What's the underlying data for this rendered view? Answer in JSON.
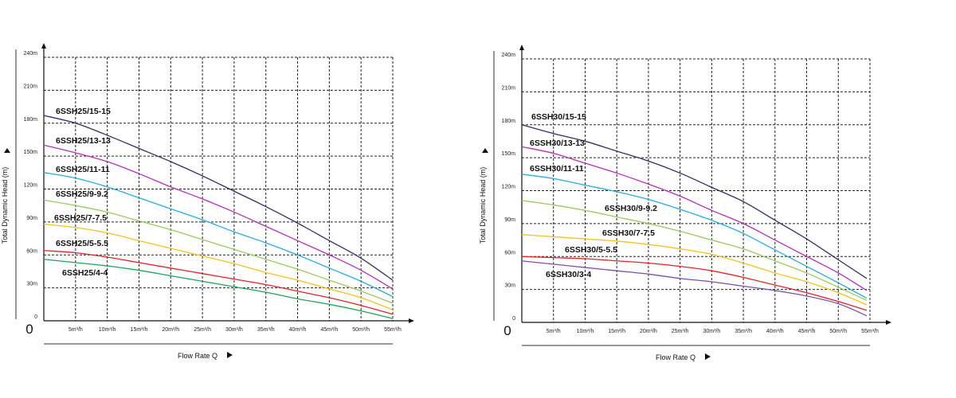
{
  "chart_data": [
    {
      "type": "line",
      "title": "",
      "xlabel": "Flow Rate Q",
      "ylabel": "Total Dynamic Head (m)",
      "origin_label": "0",
      "x": [
        0,
        5,
        10,
        15,
        20,
        25,
        30,
        35,
        40,
        45,
        50,
        55
      ],
      "xticks": [
        "5m³/h",
        "10m³/h",
        "15m³/h",
        "20m³/h",
        "25m³/h",
        "30m³/h",
        "35m³/h",
        "40m³/h",
        "45m³/h",
        "50m³/h",
        "55m³/h"
      ],
      "yticks": [
        "0",
        "30m",
        "60m",
        "90m",
        "120m",
        "150m",
        "180m",
        "210m",
        "240m"
      ],
      "xlim": [
        0,
        55
      ],
      "ylim": [
        0,
        240
      ],
      "grid": true,
      "legend": "inline-labels",
      "series": [
        {
          "name": "6SSH25/15-15",
          "color": "#2f3160",
          "values": [
            187,
            180,
            169,
            157,
            145,
            132,
            118,
            104,
            89,
            73,
            57,
            37
          ]
        },
        {
          "name": "6SSH25/13-13",
          "color": "#b52fb6",
          "values": [
            160,
            153,
            145,
            134,
            122,
            111,
            99,
            86,
            73,
            60,
            46,
            29
          ]
        },
        {
          "name": "6SSH25/11-11",
          "color": "#22aee0",
          "values": [
            135,
            130,
            122,
            112,
            102,
            92,
            81,
            71,
            60,
            48,
            36,
            22
          ]
        },
        {
          "name": "6SSH25/9-9.2",
          "color": "#9dc95c",
          "values": [
            110,
            105,
            99,
            91,
            83,
            74,
            65,
            56,
            47,
            37,
            27,
            16
          ]
        },
        {
          "name": "6SSH25/7-7.5",
          "color": "#f2c318",
          "values": [
            88,
            85,
            80,
            73,
            66,
            59,
            52,
            44,
            37,
            29,
            21,
            10
          ]
        },
        {
          "name": "6SSH25/5-5.5",
          "color": "#e4222a",
          "values": [
            64,
            62,
            58,
            53,
            48,
            43,
            38,
            33,
            27,
            21,
            14,
            6
          ]
        },
        {
          "name": "6SSH25/4-4",
          "color": "#19a55c",
          "values": [
            56,
            53,
            50,
            46,
            41,
            36,
            31,
            26,
            20,
            15,
            9,
            2
          ]
        }
      ]
    },
    {
      "type": "line",
      "title": "",
      "xlabel": "Flow Rate Q",
      "ylabel": "Total Dynamic Head (m)",
      "origin_label": "0",
      "x": [
        0,
        5,
        10,
        15,
        20,
        25,
        30,
        35,
        40,
        45,
        50,
        54.5
      ],
      "xticks": [
        "5m³/h",
        "10m³/h",
        "15m³/h",
        "20m³/h",
        "25m³/h",
        "30m³/h",
        "35m³/h",
        "40m³/h",
        "45m³/h",
        "50m³/h",
        "55m³/h"
      ],
      "yticks": [
        "0",
        "30m",
        "60m",
        "90m",
        "120m",
        "150m",
        "180m",
        "210m",
        "240m"
      ],
      "xlim": [
        0,
        55
      ],
      "ylim": [
        0,
        240
      ],
      "grid": true,
      "legend": "inline-labels",
      "series": [
        {
          "name": "6SSH30/15-15",
          "color": "#2f3160",
          "values": [
            180,
            172,
            165,
            156,
            147,
            136,
            123,
            110,
            93,
            76,
            57,
            40
          ]
        },
        {
          "name": "6SSH30/13-13",
          "color": "#b52fb6",
          "values": [
            160,
            154,
            145,
            136,
            126,
            115,
            102,
            90,
            75,
            60,
            45,
            29
          ]
        },
        {
          "name": "6SSH30/11-11",
          "color": "#22aee0",
          "values": [
            135,
            131,
            125,
            119,
            112,
            103,
            93,
            81,
            66,
            51,
            36,
            22
          ]
        },
        {
          "name": "6SSH30/9-9.2",
          "color": "#9dc95c",
          "values": [
            111,
            107,
            102,
            96,
            90,
            83,
            75,
            67,
            56,
            45,
            32,
            20
          ]
        },
        {
          "name": "6SSH30/7-7.5",
          "color": "#f2c318",
          "values": [
            80,
            78,
            76,
            74,
            71,
            67,
            62,
            54,
            45,
            37,
            27,
            16
          ]
        },
        {
          "name": "6SSH30/5-5.5",
          "color": "#e4222a",
          "values": [
            60,
            59,
            58,
            56,
            54,
            51,
            47,
            41,
            34,
            27,
            19,
            11
          ]
        },
        {
          "name": "6SSH30/3-4",
          "color": "#7b4fa8",
          "values": [
            56,
            53,
            50,
            47,
            44,
            40,
            37,
            33,
            29,
            24,
            17,
            6
          ]
        }
      ]
    }
  ]
}
